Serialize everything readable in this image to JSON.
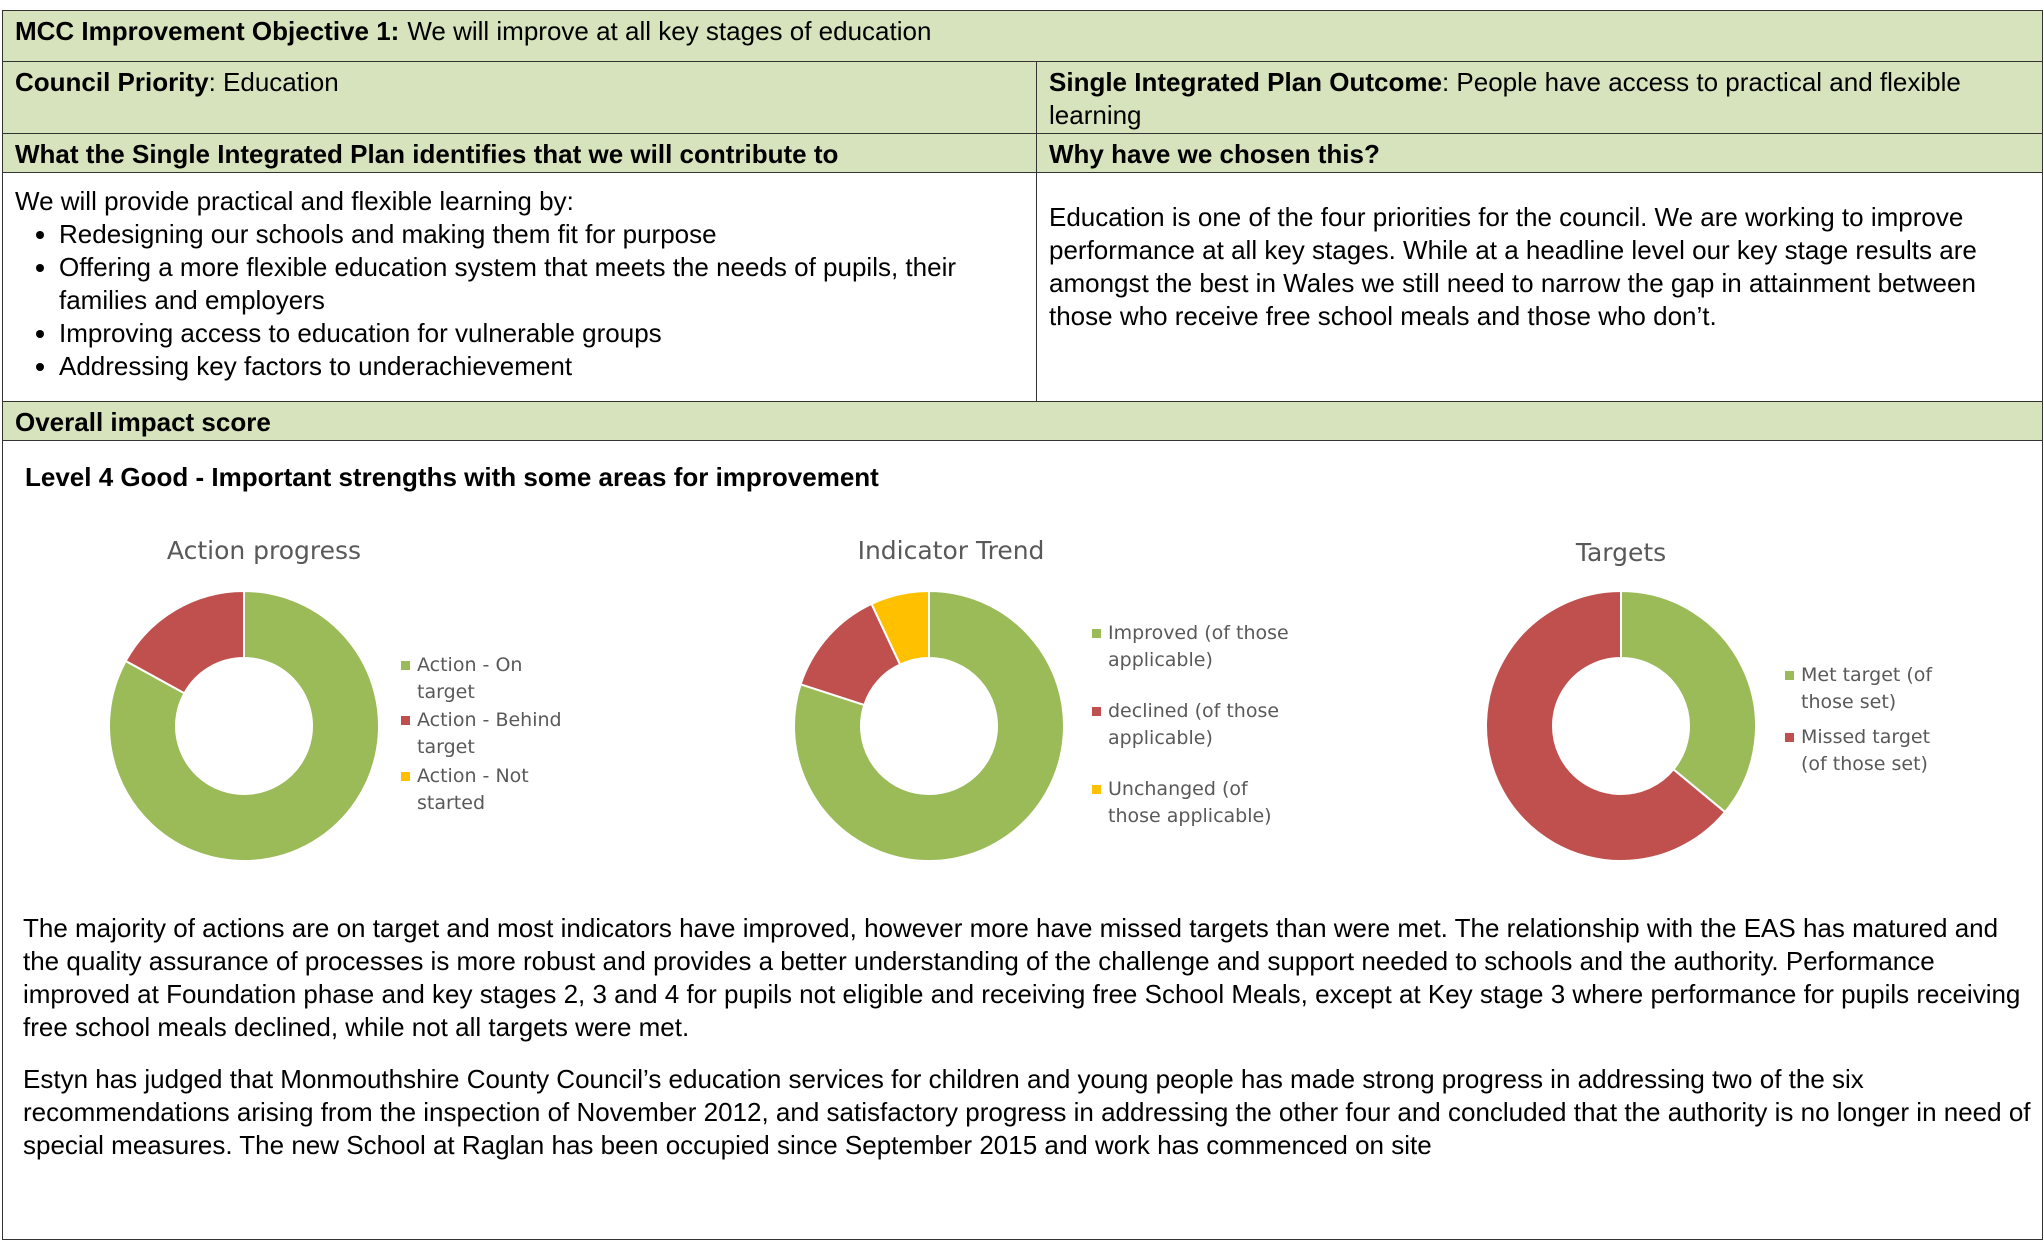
{
  "header": {
    "label": "MCC Improvement Objective 1:",
    "text": "We will improve at all key stages of education"
  },
  "table": {
    "priority_label": "Council Priority",
    "priority_text": ": Education",
    "outcome_label": "Single Integrated Plan Outcome",
    "outcome_text": ": People have access to practical and flexible learning",
    "left_heading": "What the Single Integrated Plan identifies that we will contribute to",
    "right_heading": "Why have we chosen this?",
    "left_intro": "We will provide practical and flexible learning by:",
    "bullets": [
      "Redesigning our schools and making them fit for purpose",
      "Offering a more flexible education system that meets the needs of pupils, their families and employers",
      " Improving access to education for vulnerable groups",
      "Addressing key factors to underachievement"
    ],
    "right_text": "Education is one of the four priorities for the council. We are working to improve performance at all key stages. While at a headline level our key stage results are amongst the best in Wales we still need to narrow the gap in attainment between those who receive free school meals and those who don’t.",
    "impact_heading": "Overall impact score",
    "impact_level": "Level 4 Good - Important strengths with some areas for improvement"
  },
  "chart_data": [
    {
      "type": "donut",
      "title": "Action progress",
      "categories": [
        "Action - On target",
        "Action - Behind target",
        "Action - Not started"
      ],
      "values": [
        83,
        17,
        0
      ],
      "colors": [
        "#9bbb59",
        "#c0504d",
        "#ffc000"
      ]
    },
    {
      "type": "donut",
      "title": "Indicator Trend",
      "categories": [
        "Improved (of those applicable)",
        "declined (of those applicable)",
        "Unchanged (of those applicable)"
      ],
      "values": [
        80,
        13,
        7
      ],
      "colors": [
        "#9bbb59",
        "#c0504d",
        "#ffc000"
      ]
    },
    {
      "type": "donut",
      "title": "Targets",
      "categories": [
        "Met target (of those set)",
        "Missed target (of those set)"
      ],
      "values": [
        36,
        64
      ],
      "colors": [
        "#9bbb59",
        "#c0504d"
      ]
    }
  ],
  "paragraphs": [
    "The majority of actions are on target and most indicators have improved, however more have missed targets than were met. The relationship with the EAS has matured and the quality assurance of processes is more robust and provides a better understanding of the challenge and support needed to schools and the authority. Performance improved at Foundation phase and key stages 2, 3 and 4 for pupils not eligible and receiving free School Meals, except at Key stage 3 where performance for pupils receiving free school meals declined, while not all targets were met.",
    "Estyn has judged that Monmouthshire County Council’s education services for children and young people has made strong progress in addressing two of the six recommendations arising from the inspection of November 2012, and satisfactory progress in addressing the other four and concluded that the authority is no longer in need of special measures. The new School at Raglan has been occupied since September 2015 and work has commenced on site"
  ]
}
